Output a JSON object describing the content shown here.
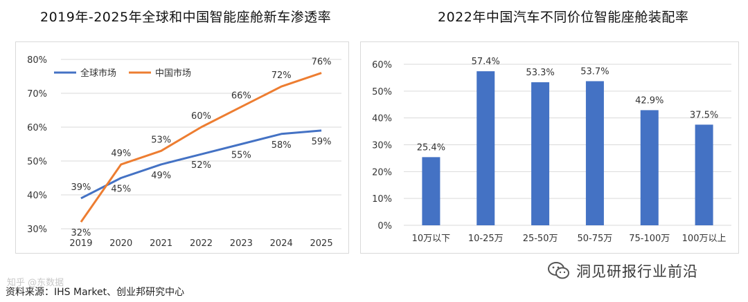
{
  "chart_data": [
    {
      "type": "line",
      "title": "2019年-2025年全球和中国智能座舱新车渗透率",
      "x": [
        "2019",
        "2020",
        "2021",
        "2022",
        "2023",
        "2024",
        "2025"
      ],
      "series": [
        {
          "name": "全球市场",
          "color": "#4472c4",
          "values": [
            39,
            45,
            49,
            52,
            55,
            58,
            59
          ]
        },
        {
          "name": "中国市场",
          "color": "#ed7d31",
          "values": [
            32,
            49,
            53,
            60,
            66,
            72,
            76
          ]
        }
      ],
      "ylim": [
        30,
        80
      ],
      "yticks": [
        "30%",
        "40%",
        "50%",
        "60%",
        "70%",
        "80%"
      ],
      "value_suffix": "%",
      "legend_position": "top-left",
      "grid": true
    },
    {
      "type": "bar",
      "title": "2022年中国汽车不同价位智能座舱装配率",
      "categories": [
        "10万以下",
        "10-25万",
        "25-50万",
        "50-75万",
        "75-100万",
        "100万以上"
      ],
      "values": [
        25.4,
        57.4,
        53.3,
        53.7,
        42.9,
        37.5
      ],
      "data_labels": [
        "25.4%",
        "57.4%",
        "53.3%",
        "53.7%",
        "42.9%",
        "37.5%"
      ],
      "color": "#4472c4",
      "ylim": [
        0,
        60
      ],
      "yticks": [
        "0%",
        "10%",
        "20%",
        "30%",
        "40%",
        "50%",
        "60%"
      ],
      "grid": true
    }
  ],
  "footer": {
    "source": "资料来源：IHS Market、创业邦研究中心",
    "small_watermark": "知乎 @东数据",
    "watermark": "洞见研报行业前沿",
    "watermark_icon": "wechat-icon"
  }
}
